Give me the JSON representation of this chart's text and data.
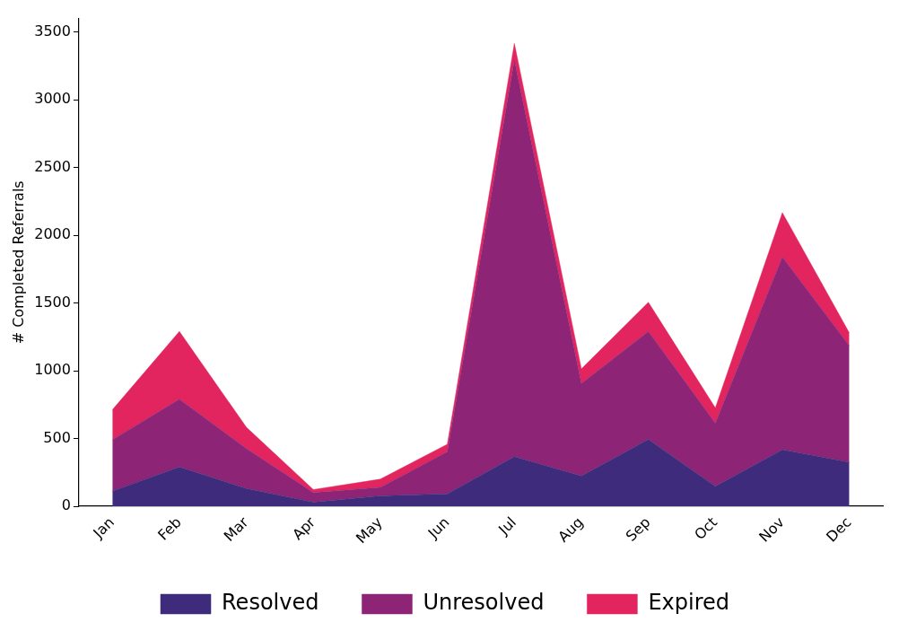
{
  "chart_data": {
    "type": "area",
    "stacked": true,
    "ylabel": "# Completed Referrals",
    "categories": [
      "Jan",
      "Feb",
      "Mar",
      "Apr",
      "May",
      "Jun",
      "Jul",
      "Aug",
      "Sep",
      "Oct",
      "Nov",
      "Dec"
    ],
    "series": [
      {
        "name": "Resolved",
        "color": "#3f2b7b",
        "values": [
          112,
          290,
          131,
          30,
          77,
          92,
          366,
          223,
          493,
          147,
          417,
          325
        ]
      },
      {
        "name": "Unresolved",
        "color": "#8e2476",
        "values": [
          379,
          500,
          295,
          71,
          63,
          310,
          2927,
          683,
          798,
          466,
          1423,
          860
        ]
      },
      {
        "name": "Expired",
        "color": "#e2245f",
        "values": [
          221,
          500,
          157,
          22,
          60,
          56,
          122,
          108,
          214,
          113,
          327,
          94
        ]
      }
    ],
    "ylim": [
      0,
      3600
    ],
    "yticks": [
      0,
      500,
      1000,
      1500,
      2000,
      2500,
      3000,
      3500
    ],
    "grid": false,
    "legend": "bottom"
  }
}
